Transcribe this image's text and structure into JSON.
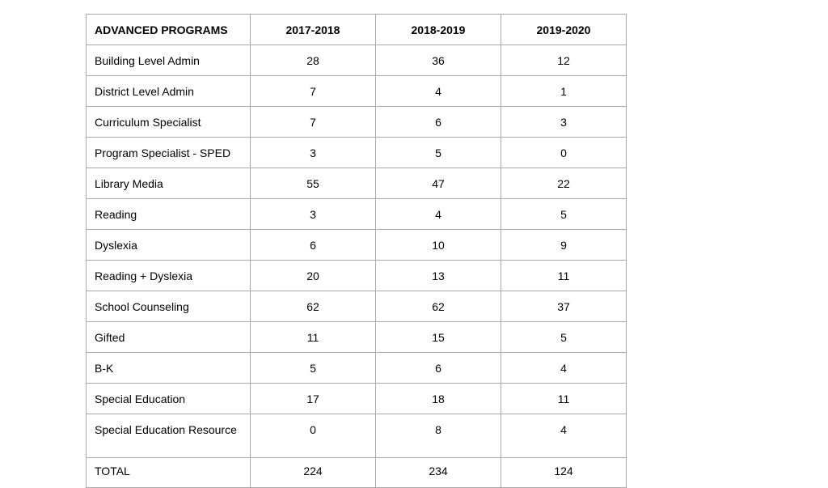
{
  "table": {
    "headers": [
      "ADVANCED PROGRAMS",
      "2017-2018",
      "2018-2019",
      "2019-2020"
    ],
    "rows": [
      [
        "Building Level Admin",
        "28",
        "36",
        "12"
      ],
      [
        "District Level Admin",
        "7",
        "4",
        "1"
      ],
      [
        "Curriculum Specialist",
        "7",
        "6",
        "3"
      ],
      [
        "Program Specialist - SPED",
        "3",
        "5",
        "0"
      ],
      [
        "Library Media",
        "55",
        "47",
        "22"
      ],
      [
        "Reading",
        "3",
        "4",
        "5"
      ],
      [
        "Dyslexia",
        "6",
        "10",
        "9"
      ],
      [
        "Reading + Dyslexia",
        "20",
        "13",
        "11"
      ],
      [
        "School Counseling",
        "62",
        "62",
        "37"
      ],
      [
        "Gifted",
        "11",
        "15",
        "5"
      ],
      [
        "B-K",
        "5",
        "6",
        "4"
      ],
      [
        "Special Education",
        "17",
        "18",
        "11"
      ],
      [
        "Special Education Resource",
        "0",
        "8",
        "4"
      ],
      [
        "TOTAL",
        "224",
        "234",
        "124"
      ]
    ],
    "border_color": "#aaaaaa"
  }
}
